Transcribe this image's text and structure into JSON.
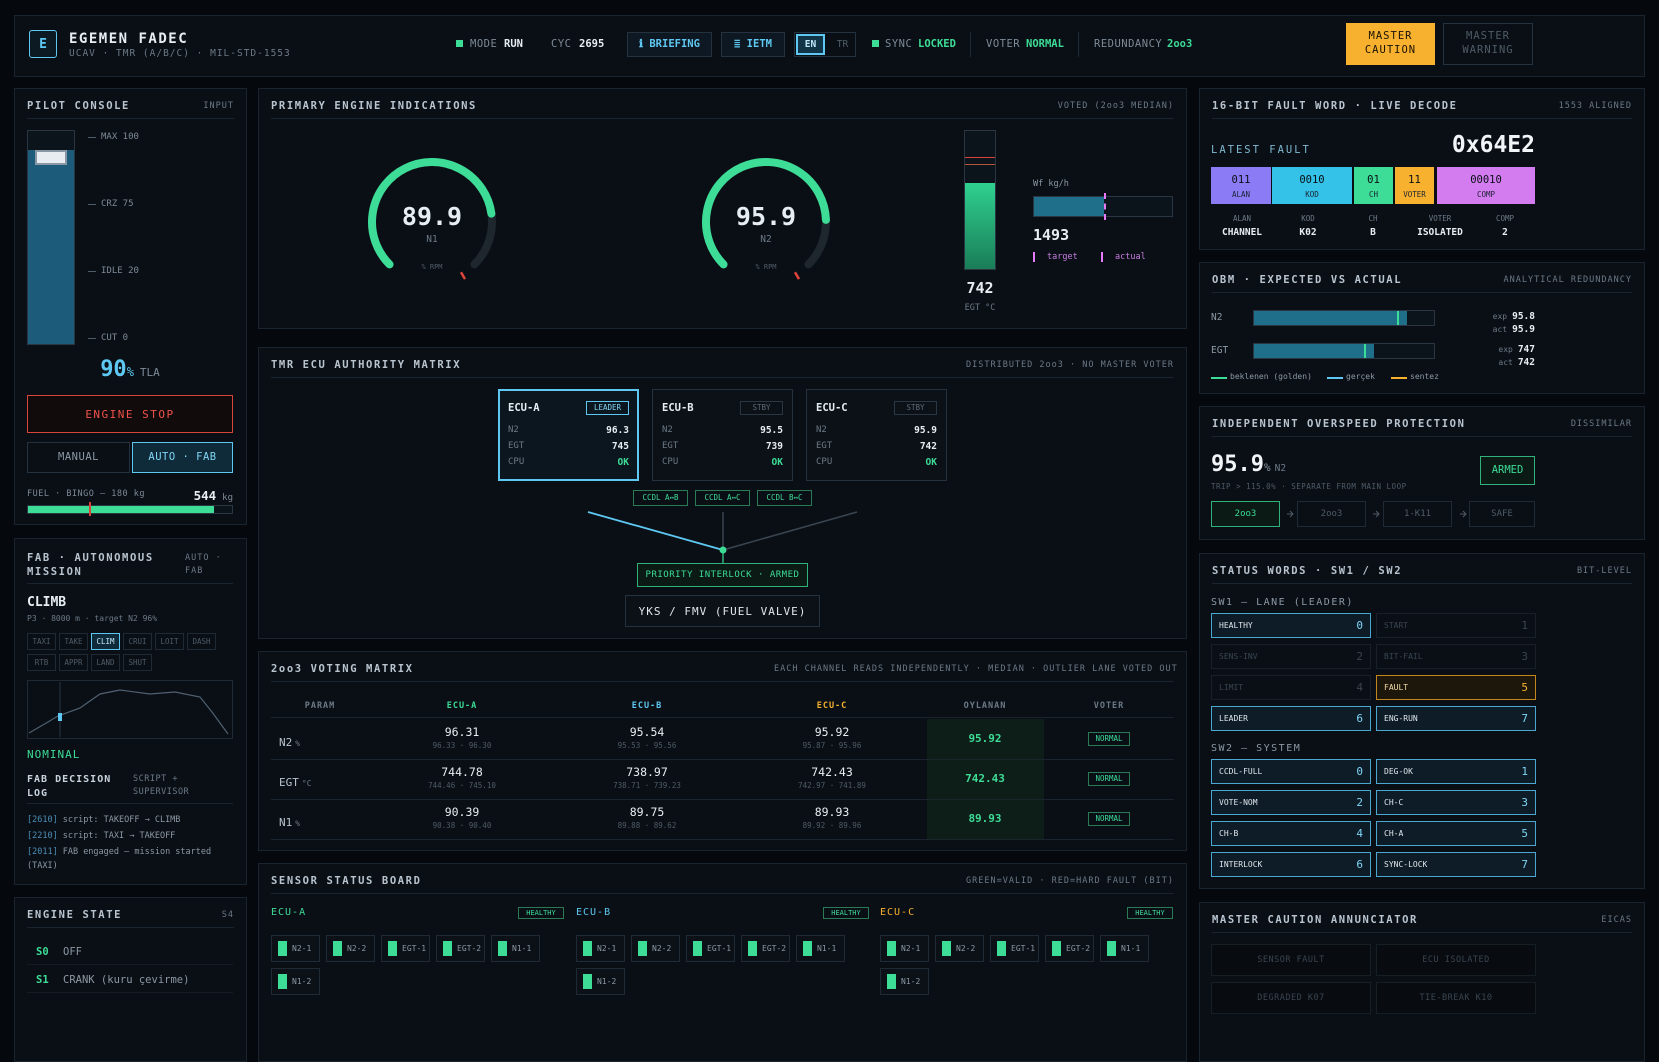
{
  "header": {
    "logo": "E",
    "title": "EGEMEN FADEC",
    "subtitle": "UCAV · TMR (A/B/C) · MIL-STD-1553",
    "mode": {
      "label": "MODE",
      "value": "RUN"
    },
    "cycle": {
      "label": "CYC",
      "value": 2695
    },
    "buttons": [
      "ℹ BRIEFING",
      "≣ IETM"
    ],
    "languages": [
      "EN",
      "TR"
    ],
    "active_language": 0,
    "sync": {
      "label": "SYNC",
      "value": "LOCKED"
    },
    "voter": {
      "label": "VOTER",
      "value": "NORMAL"
    },
    "redundancy": {
      "label": "REDUNDANCY",
      "value": "2oo3"
    },
    "master_caution": "MASTER CAUTION",
    "master_warning": "MASTER WARNING"
  },
  "pilot_console": {
    "title": "PILOT CONSOLE",
    "tag": "INPUT",
    "ticks": [
      "MAX 100",
      "CRZ 75",
      "IDLE 20",
      "CUT 0"
    ],
    "tla": {
      "value": 90,
      "unit": "%",
      "label": "TLA"
    },
    "engine_stop": "ENGINE STOP",
    "modes": [
      "MANUAL",
      "AUTO · FAB"
    ],
    "active_mode": 1,
    "fuel": {
      "label": "FUEL · BINGO — 180 kg",
      "value": 544,
      "unit": "kg"
    }
  },
  "fab": {
    "title": "FAB · AUTONOMOUS MISSION",
    "tag": "AUTO · FAB",
    "phase": "CLIMB",
    "detail": "P3 · 8000 m · target N2 96%",
    "phases": [
      "TAXI",
      "TAKE",
      "CLIM",
      "CRUI",
      "LOIT",
      "DASH",
      "RTB",
      "APPR",
      "LAND",
      "SHUT"
    ],
    "active_phase": 2,
    "status": "NOMINAL",
    "log_title": "FAB DECISION LOG",
    "log_tag": "SCRIPT + SUPERVISOR",
    "log": [
      {
        "time": "[2610]",
        "message": "script: TAKEOFF → CLIMB"
      },
      {
        "time": "[2210]",
        "message": "script: TAXI → TAKEOFF"
      },
      {
        "time": "[2011]",
        "message": "FAB engaged — mission started (TAXI)"
      }
    ]
  },
  "engine_state": {
    "title": "ENGINE STATE",
    "tag": "S4",
    "states": [
      {
        "code": "S0",
        "label": "OFF"
      },
      {
        "code": "S1",
        "label": "CRANK (kuru çevirme)"
      }
    ]
  },
  "engine": {
    "title": "PRIMARY ENGINE INDICATIONS",
    "tag": "VOTED (2oo3 MEDIAN)",
    "gauges": [
      {
        "value": 89.9,
        "name": "N1",
        "unit": "% RPM"
      },
      {
        "value": 95.9,
        "name": "N2",
        "unit": "% RPM"
      }
    ],
    "egt": {
      "value": 742,
      "label": "EGT °C"
    },
    "fuel_flow": {
      "label": "Wf kg/h",
      "value": 1493,
      "legend": [
        "target",
        "actual"
      ]
    }
  },
  "tmr": {
    "title": "TMR ECU AUTHORITY MATRIX",
    "tag": "DISTRIBUTED 2oo3 · NO MASTER VOTER",
    "ecus": [
      {
        "name": "ECU-A",
        "role": "LEADER",
        "rows": [
          [
            "N2",
            96.3
          ],
          [
            "EGT",
            745
          ],
          [
            "CPU",
            "OK"
          ]
        ]
      },
      {
        "name": "ECU-B",
        "role": "STBY",
        "rows": [
          [
            "N2",
            95.5
          ],
          [
            "EGT",
            739
          ],
          [
            "CPU",
            "OK"
          ]
        ]
      },
      {
        "name": "ECU-C",
        "role": "STBY",
        "rows": [
          [
            "N2",
            95.9
          ],
          [
            "EGT",
            742
          ],
          [
            "CPU",
            "OK"
          ]
        ]
      }
    ],
    "ccdl": [
      "CCDL A↔B",
      "CCDL A↔C",
      "CCDL B↔C"
    ],
    "interlock": "PRIORITY INTERLOCK · ARMED",
    "valve": "YKS / FMV (FUEL VALVE)"
  },
  "voting": {
    "title": "2oo3 VOTING MATRIX",
    "tag": "EACH CHANNEL READS INDEPENDENTLY · MEDIAN · OUTLIER LANE VOTED OUT",
    "headers": [
      "PARAM",
      "ECU-A",
      "ECU-B",
      "ECU-C",
      "OYLANAN",
      "VOTER"
    ],
    "rows": [
      {
        "param": "N2",
        "unit": "%",
        "cells": [
          {
            "value": "96.31",
            "range": "96.33 · 96.30"
          },
          {
            "value": "95.54",
            "range": "95.53 · 95.56"
          },
          {
            "value": "95.92",
            "range": "95.87 · 95.96"
          }
        ],
        "voted": "95.92",
        "voter": "NORMAL"
      },
      {
        "param": "EGT",
        "unit": "°C",
        "cells": [
          {
            "value": "744.78",
            "range": "744.46 · 745.10"
          },
          {
            "value": "738.97",
            "range": "738.71 · 739.23"
          },
          {
            "value": "742.43",
            "range": "742.97 · 741.89"
          }
        ],
        "voted": "742.43",
        "voter": "NORMAL"
      },
      {
        "param": "N1",
        "unit": "%",
        "cells": [
          {
            "value": "90.39",
            "range": "90.38 · 90.40"
          },
          {
            "value": "89.75",
            "range": "89.88 · 89.62"
          },
          {
            "value": "89.93",
            "range": "89.92 · 89.96"
          }
        ],
        "voted": "89.93",
        "voter": "NORMAL"
      }
    ]
  },
  "sensors": {
    "title": "SENSOR STATUS BOARD",
    "tag": "GREEN=VALID · RED=HARD FAULT (BIT)",
    "groups": [
      {
        "name": "ECU-A",
        "status": "HEALTHY",
        "color": "#3ddc97",
        "sensors": [
          "N2-1",
          "N2-2",
          "EGT-1",
          "EGT-2",
          "N1-1",
          "N1-2"
        ]
      },
      {
        "name": "ECU-B",
        "status": "HEALTHY",
        "color": "#5ec8f2",
        "sensors": [
          "N2-1",
          "N2-2",
          "EGT-1",
          "EGT-2",
          "N1-1",
          "N1-2"
        ]
      },
      {
        "name": "ECU-C",
        "status": "HEALTHY",
        "color": "#f7b12f",
        "sensors": [
          "N2-1",
          "N2-2",
          "EGT-1",
          "EGT-2",
          "N1-1",
          "N1-2"
        ]
      }
    ]
  },
  "fault_word": {
    "title": "16-BIT FAULT WORD · LIVE DECODE",
    "tag": "1553 ALIGNED",
    "latest_label": "LATEST FAULT",
    "hex": "0x64E2",
    "fields": [
      {
        "bits": "011",
        "name": "ALAN",
        "color": "#8b7cf6",
        "decoded": "CHANNEL"
      },
      {
        "bits": "0010",
        "name": "KOD",
        "color": "#35c2e8",
        "decoded": "K02"
      },
      {
        "bits": "01",
        "name": "CH",
        "color": "#3ddc97",
        "decoded": "B"
      },
      {
        "bits": "11",
        "name": "VOTER",
        "color": "#f7b12f",
        "decoded": "ISOLATED"
      },
      {
        "bits": "00010",
        "name": "COMP",
        "color": "#d27cf0",
        "decoded": "2"
      }
    ]
  },
  "obm": {
    "title": "OBM · EXPECTED VS ACTUAL",
    "tag": "ANALYTICAL REDUNDANCY",
    "exp_label": "exp",
    "act_label": "act",
    "rows": [
      {
        "name": "N2",
        "expected": 95.8,
        "actual": 95.9
      },
      {
        "name": "EGT",
        "expected": 747,
        "actual": 742
      }
    ],
    "legend": [
      "beklenen (golden)",
      "gerçek",
      "sentez"
    ]
  },
  "overspeed": {
    "title": "INDEPENDENT OVERSPEED PROTECTION",
    "tag": "DISSIMILAR",
    "value": 95.9,
    "unit": "%",
    "param": "N2",
    "note": "TRIP > 115.0% · SEPARATE FROM MAIN LOOP",
    "status": "ARMED",
    "chain": [
      "2oo3",
      "2oo3",
      "1-K11",
      "SAFE"
    ],
    "active_step": 0
  },
  "status_words": {
    "title": "STATUS WORDS · SW1 / SW2",
    "tag": "BIT-LEVEL",
    "sw1": {
      "title": "SW1 — LANE (LEADER)",
      "bits": [
        {
          "name": "HEALTHY",
          "bit": 0,
          "state": "on"
        },
        {
          "name": "START",
          "bit": 1,
          "state": "off"
        },
        {
          "name": "SENS-INV",
          "bit": 2,
          "state": "off"
        },
        {
          "name": "BIT-FAIL",
          "bit": 3,
          "state": "off"
        },
        {
          "name": "LIMIT",
          "bit": 4,
          "state": "off"
        },
        {
          "name": "FAULT",
          "bit": 5,
          "state": "warn"
        },
        {
          "name": "LEADER",
          "bit": 6,
          "state": "on"
        },
        {
          "name": "ENG-RUN",
          "bit": 7,
          "state": "on"
        }
      ]
    },
    "sw2": {
      "title": "SW2 — SYSTEM",
      "bits": [
        {
          "name": "CCDL-FULL",
          "bit": 0,
          "state": "on"
        },
        {
          "name": "DEG-OK",
          "bit": 1,
          "state": "on"
        },
        {
          "name": "VOTE-NOM",
          "bit": 2,
          "state": "on"
        },
        {
          "name": "CH-C",
          "bit": 3,
          "state": "on"
        },
        {
          "name": "CH-B",
          "bit": 4,
          "state": "on"
        },
        {
          "name": "CH-A",
          "bit": 5,
          "state": "on"
        },
        {
          "name": "INTERLOCK",
          "bit": 6,
          "state": "on"
        },
        {
          "name": "SYNC-LOCK",
          "bit": 7,
          "state": "on"
        }
      ]
    }
  },
  "annunciator": {
    "title": "MASTER CAUTION ANNUNCIATOR",
    "tag": "EICAS",
    "items": [
      "SENSOR FAULT",
      "ECU ISOLATED",
      "DEGRADED K07",
      "TIE-BREAK K10"
    ]
  }
}
